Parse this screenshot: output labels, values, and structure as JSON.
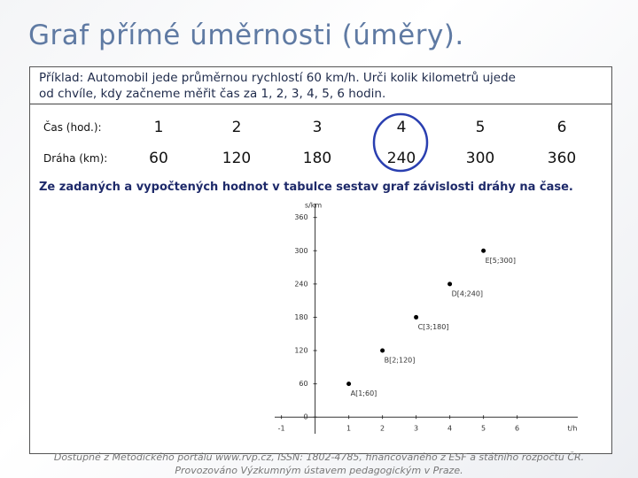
{
  "header": {
    "title": "Graf přímé úměrnosti (úměry)."
  },
  "problem": {
    "lines": [
      "Příklad: Automobil jede průměrnou rychlostí 60 km/h. Urči kolik kilometrů ujede",
      "od chvíle, kdy začneme měřit čas za 1, 2, 3, 4, 5, 6 hodin."
    ]
  },
  "table": {
    "rows": [
      [
        "Čas (hod.):",
        1,
        2,
        3,
        4,
        5,
        6
      ],
      [
        "Dráha (km):",
        60,
        120,
        180,
        240,
        300,
        360
      ]
    ]
  },
  "instruction": "Ze zadaných a vypočtených hodnot v tabulce sestav graf závislosti dráhy na čase.",
  "chart_data": {
    "type": "scatter",
    "x_label": "t/h",
    "y_label": "s/km",
    "x": [
      1,
      2,
      3,
      4,
      5
    ],
    "values": [
      60,
      120,
      180,
      240,
      300
    ],
    "point_labels": [
      "A[1;60]",
      "B[2;120]",
      "C[3;180]",
      "D[4;240]",
      "E[5;300]"
    ],
    "color": "#000000",
    "xlim": [
      -1.2,
      7.8
    ],
    "ylim": [
      -30,
      385
    ],
    "xticks": [
      -1,
      1,
      2,
      3,
      4,
      5,
      6
    ],
    "yticks": [
      0,
      60,
      120,
      180,
      240,
      300,
      360
    ]
  },
  "footer": {
    "lines": [
      "Dostupné z Metodického portálu www.rvp.cz, ISSN: 1802-4785, financovaného z ESF a státního rozpočtu ČR.",
      "Provozováno Výzkumným ústavem pedagogickým v Praze."
    ]
  }
}
